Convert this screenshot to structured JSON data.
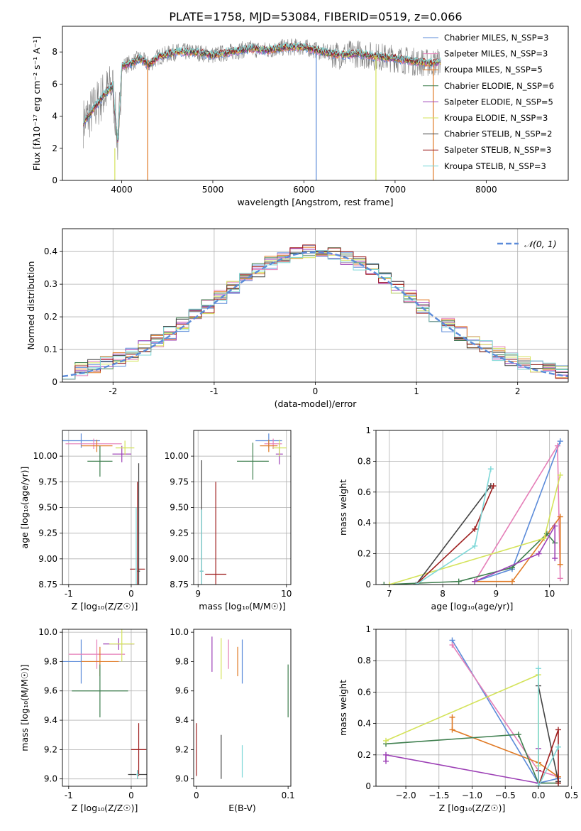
{
  "figure": {
    "title": "PLATE=1758, MJD=53084, FIBERID=0519, z=0.066"
  },
  "colors": {
    "chabrier_miles": "#5b8bd9",
    "salpeter_miles": "#e57fb8",
    "kroupa_miles": "#e07a25",
    "chabrier_elodie": "#3f7f4f",
    "salpeter_elodie": "#9c3fb5",
    "kroupa_elodie": "#d4e35a",
    "chabrier_stelib": "#444444",
    "salpeter_stelib": "#9e1f1f",
    "kroupa_stelib": "#7fd8d8",
    "data": "#808080",
    "normal": "#5b8bd9"
  },
  "chart_data": [
    {
      "id": "spectrum",
      "type": "line",
      "xlabel": "wavelength [Angstrom, rest frame]",
      "ylabel": "Flux [fλ10⁻¹⁷ erg cm⁻² s⁻¹ A⁻¹]",
      "xlim": [
        3350,
        8900
      ],
      "ylim": [
        0,
        9.6
      ],
      "xticks": [
        4000,
        5000,
        6000,
        7000,
        8000
      ],
      "yticks": [
        0,
        2,
        4,
        6,
        8
      ],
      "grid": false,
      "legend": "top-right",
      "legend_entries": [
        "Chabrier MILES, N_SSP=3",
        "Salpeter MILES, N_SSP=3",
        "Kroupa MILES, N_SSP=5",
        "Chabrier ELODIE, N_SSP=6",
        "Salpeter ELODIE, N_SSP=5",
        "Kroupa ELODIE, N_SSP=3",
        "Chabrier STELIB, N_SSP=2",
        "Salpeter STELIB, N_SSP=3",
        "Kroupa STELIB, N_SSP=3"
      ],
      "series": [
        {
          "x": [
            3580,
            3700,
            3800,
            3900,
            3960,
            4000,
            4100,
            4200,
            4300,
            4400,
            4600,
            4800,
            5000,
            5200,
            5400,
            5600,
            5800,
            6000,
            6200,
            6400,
            6600,
            6800,
            7000,
            7200,
            7400,
            7500
          ],
          "y": [
            3.6,
            4.5,
            5.3,
            5.9,
            2.2,
            7.1,
            7.3,
            7.6,
            7.2,
            7.7,
            8.0,
            8.0,
            7.8,
            8.0,
            8.2,
            8.1,
            8.3,
            8.3,
            8.0,
            7.8,
            7.9,
            7.7,
            7.6,
            7.4,
            7.3,
            7.4
          ]
        }
      ],
      "model_lines": [
        {
          "x": 3925,
          "y_top": 2.0,
          "color": "kroupa_elodie"
        },
        {
          "x": 4285,
          "y_top": 7.5,
          "color": "kroupa_miles"
        },
        {
          "x": 6135,
          "y_top": 8.0,
          "color": "chabrier_miles"
        },
        {
          "x": 6790,
          "y_top": 7.8,
          "color": "kroupa_elodie"
        },
        {
          "x": 7420,
          "y_top": 7.4,
          "color": "kroupa_miles"
        }
      ]
    },
    {
      "id": "residuals",
      "type": "line",
      "xlabel": "(data-model)/error",
      "ylabel": "Normed distribution",
      "xlim": [
        -2.5,
        2.5
      ],
      "ylim": [
        0,
        0.47
      ],
      "xticks": [
        -2,
        -1,
        0,
        1,
        2
      ],
      "yticks": [
        0.0,
        0.1,
        0.2,
        0.3,
        0.4
      ],
      "grid": true,
      "legend": "top-right",
      "legend_label": "𝒩(0, 1)",
      "hist_edges": [
        -2.5,
        -2.375,
        -2.25,
        -2.125,
        -2.0,
        -1.875,
        -1.75,
        -1.625,
        -1.5,
        -1.375,
        -1.25,
        -1.125,
        -1.0,
        -0.875,
        -0.75,
        -0.625,
        -0.5,
        -0.375,
        -0.25,
        -0.125,
        0.0,
        0.125,
        0.25,
        0.375,
        0.5,
        0.625,
        0.75,
        0.875,
        1.0,
        1.125,
        1.25,
        1.375,
        1.5,
        1.625,
        1.75,
        1.875,
        2.0,
        2.125,
        2.25,
        2.375,
        2.5
      ]
    },
    {
      "id": "age_vs_Z",
      "type": "scatter",
      "xlabel": "Z [log₁₀(Z/Z☉)]",
      "ylabel": "age  [log₁₀(age/yr)]",
      "xlim": [
        -1.1,
        0.25
      ],
      "ylim": [
        8.75,
        10.25
      ],
      "xticks": [
        -1,
        0
      ],
      "yticks": [
        8.75,
        9.0,
        9.25,
        9.5,
        9.75,
        10.0
      ],
      "ytick_labels": [
        "8.75",
        "9.00",
        "9.25",
        "9.50",
        "9.75",
        "10.00"
      ],
      "grid": true,
      "points": [
        {
          "x": -0.8,
          "y": 10.15,
          "xerr": 0.3,
          "yerr": 0.07,
          "color": "chabrier_miles"
        },
        {
          "x": -0.6,
          "y": 10.12,
          "xerr": 0.45,
          "yerr": 0.05,
          "color": "salpeter_miles"
        },
        {
          "x": -0.55,
          "y": 10.1,
          "xerr": 0.25,
          "yerr": 0.06,
          "color": "kroupa_miles"
        },
        {
          "x": -0.5,
          "y": 9.95,
          "xerr": 0.2,
          "yerr": 0.15,
          "color": "chabrier_elodie"
        },
        {
          "x": -0.15,
          "y": 10.02,
          "xerr": 0.15,
          "yerr": 0.08,
          "color": "salpeter_elodie"
        },
        {
          "x": -0.1,
          "y": 10.08,
          "xerr": 0.15,
          "yerr": 0.07,
          "color": "kroupa_elodie"
        },
        {
          "x": 0.12,
          "y": 8.88,
          "xerr": 0.02,
          "yerr": 1.05,
          "color": "chabrier_stelib"
        },
        {
          "x": 0.1,
          "y": 8.9,
          "xerr": 0.12,
          "yerr": 0.85,
          "color": "salpeter_stelib"
        },
        {
          "x": 0.08,
          "y": 8.9,
          "xerr": 0.02,
          "yerr": 0.6,
          "color": "kroupa_stelib"
        }
      ]
    },
    {
      "id": "age_vs_mass",
      "type": "scatter",
      "xlabel": "mass [log₁₀(M/M☉)]",
      "ylabel": "",
      "xlim": [
        8.95,
        10.05
      ],
      "ylim": [
        8.75,
        10.25
      ],
      "xticks": [
        9,
        10
      ],
      "yticks": [
        8.75,
        9.0,
        9.25,
        9.5,
        9.75,
        10.0
      ],
      "ytick_labels": [
        "8.75",
        "9.00",
        "9.25",
        "9.50",
        "9.75",
        "10.00"
      ],
      "grid": true,
      "points": [
        {
          "x": 9.8,
          "y": 10.15,
          "xerr": 0.15,
          "yerr": 0.07,
          "color": "chabrier_miles"
        },
        {
          "x": 9.85,
          "y": 10.12,
          "xerr": 0.1,
          "yerr": 0.05,
          "color": "salpeter_miles"
        },
        {
          "x": 9.8,
          "y": 10.1,
          "xerr": 0.1,
          "yerr": 0.06,
          "color": "kroupa_miles"
        },
        {
          "x": 9.62,
          "y": 9.95,
          "xerr": 0.18,
          "yerr": 0.18,
          "color": "chabrier_elodie"
        },
        {
          "x": 9.92,
          "y": 10.02,
          "xerr": 0.04,
          "yerr": 0.1,
          "color": "salpeter_elodie"
        },
        {
          "x": 9.92,
          "y": 10.08,
          "xerr": 0.08,
          "yerr": 0.08,
          "color": "kroupa_elodie"
        },
        {
          "x": 9.04,
          "y": 8.88,
          "xerr": 0.02,
          "yerr": 1.08,
          "color": "chabrier_stelib"
        },
        {
          "x": 9.2,
          "y": 8.85,
          "xerr": 0.12,
          "yerr": 0.9,
          "color": "salpeter_stelib"
        },
        {
          "x": 9.04,
          "y": 8.88,
          "xerr": 0.02,
          "yerr": 0.6,
          "color": "kroupa_stelib"
        }
      ]
    },
    {
      "id": "weight_vs_age",
      "type": "line",
      "xlabel": "age  [log₁₀(age/yr)]",
      "ylabel": "mass weight",
      "xlim": [
        6.75,
        10.35
      ],
      "ylim": [
        0,
        1.0
      ],
      "xticks": [
        7,
        8,
        9,
        10
      ],
      "yticks": [
        0.0,
        0.2,
        0.4,
        0.6,
        0.8,
        1.0
      ],
      "grid": true,
      "series": [
        {
          "color": "chabrier_miles",
          "x": [
            8.6,
            9.3,
            10.2
          ],
          "y": [
            0.02,
            0.1,
            0.93
          ]
        },
        {
          "color": "salpeter_miles",
          "x": [
            8.6,
            10.15,
            10.2
          ],
          "y": [
            0.02,
            0.9,
            0.04
          ]
        },
        {
          "color": "kroupa_miles",
          "x": [
            8.6,
            9.3,
            10.2,
            10.2
          ],
          "y": [
            0.02,
            0.02,
            0.44,
            0.13
          ]
        },
        {
          "color": "chabrier_elodie",
          "x": [
            6.9,
            8.3,
            9.3,
            9.95,
            10.1
          ],
          "y": [
            0.0,
            0.02,
            0.11,
            0.33,
            0.27
          ]
        },
        {
          "color": "salpeter_elodie",
          "x": [
            8.6,
            9.8,
            10.1,
            10.1
          ],
          "y": [
            0.02,
            0.2,
            0.38,
            0.17
          ]
        },
        {
          "color": "kroupa_elodie",
          "x": [
            7.0,
            9.9,
            10.2
          ],
          "y": [
            0.0,
            0.3,
            0.71
          ]
        },
        {
          "color": "chabrier_stelib",
          "x": [
            7.5,
            8.9
          ],
          "y": [
            0.0,
            0.64
          ]
        },
        {
          "color": "salpeter_stelib",
          "x": [
            7.5,
            8.6,
            8.95
          ],
          "y": [
            0.0,
            0.36,
            0.64
          ]
        },
        {
          "color": "kroupa_stelib",
          "x": [
            7.5,
            8.6,
            8.9
          ],
          "y": [
            0.0,
            0.25,
            0.75
          ]
        }
      ]
    },
    {
      "id": "mass_vs_Z",
      "type": "scatter",
      "xlabel": "Z [log₁₀(Z/Z☉)]",
      "ylabel": "mass [log₁₀(M/M☉)]",
      "xlim": [
        -1.1,
        0.25
      ],
      "ylim": [
        8.95,
        10.02
      ],
      "xticks": [
        -1,
        0
      ],
      "yticks": [
        9.0,
        9.2,
        9.4,
        9.6,
        9.8,
        10.0
      ],
      "ytick_labels": [
        "9.0",
        "9.2",
        "9.4",
        "9.6",
        "9.8",
        "10.0"
      ],
      "grid": true,
      "points": [
        {
          "x": -0.8,
          "y": 9.8,
          "xerr": 0.3,
          "yerr": 0.15,
          "color": "chabrier_miles"
        },
        {
          "x": -0.55,
          "y": 9.85,
          "xerr": 0.45,
          "yerr": 0.1,
          "color": "salpeter_miles"
        },
        {
          "x": -0.5,
          "y": 9.8,
          "xerr": 0.3,
          "yerr": 0.1,
          "color": "kroupa_miles"
        },
        {
          "x": -0.5,
          "y": 9.6,
          "xerr": 0.45,
          "yerr": 0.18,
          "color": "chabrier_elodie"
        },
        {
          "x": -0.2,
          "y": 9.92,
          "xerr": 0.25,
          "yerr": 0.04,
          "color": "salpeter_elodie"
        },
        {
          "x": -0.15,
          "y": 9.92,
          "xerr": 0.2,
          "yerr": 0.12,
          "color": "kroupa_elodie"
        },
        {
          "x": 0.1,
          "y": 9.03,
          "xerr": 0.15,
          "yerr": 0.03,
          "color": "chabrier_stelib"
        },
        {
          "x": 0.12,
          "y": 9.2,
          "xerr": 0.12,
          "yerr": 0.18,
          "color": "salpeter_stelib"
        },
        {
          "x": 0.1,
          "y": 9.03,
          "xerr": 0.02,
          "yerr": 0.03,
          "color": "kroupa_stelib"
        }
      ]
    },
    {
      "id": "mass_vs_ebv",
      "type": "scatter",
      "xlabel": "E(B-V)",
      "ylabel": "",
      "xlim": [
        -0.003,
        0.103
      ],
      "ylim": [
        8.95,
        10.02
      ],
      "xticks": [
        0.0,
        0.1
      ],
      "yticks": [
        9.0,
        9.2,
        9.4,
        9.6,
        9.8,
        10.0
      ],
      "ytick_labels": [
        "9.0",
        "9.2",
        "9.4",
        "9.6",
        "9.8",
        "10.0"
      ],
      "grid": false,
      "points": [
        {
          "x": 0.05,
          "y": 9.8,
          "xerr": 0,
          "yerr": 0.15,
          "color": "chabrier_miles"
        },
        {
          "x": 0.035,
          "y": 9.85,
          "xerr": 0,
          "yerr": 0.1,
          "color": "salpeter_miles"
        },
        {
          "x": 0.045,
          "y": 9.8,
          "xerr": 0,
          "yerr": 0.1,
          "color": "kroupa_miles"
        },
        {
          "x": 0.1,
          "y": 9.6,
          "xerr": 0,
          "yerr": 0.18,
          "color": "chabrier_elodie"
        },
        {
          "x": 0.017,
          "y": 9.85,
          "xerr": 0,
          "yerr": 0.12,
          "color": "salpeter_elodie"
        },
        {
          "x": 0.027,
          "y": 9.82,
          "xerr": 0,
          "yerr": 0.14,
          "color": "kroupa_elodie"
        },
        {
          "x": 0.027,
          "y": 9.15,
          "xerr": 0,
          "yerr": 0.15,
          "color": "chabrier_stelib"
        },
        {
          "x": 0.0,
          "y": 9.2,
          "xerr": 0,
          "yerr": 0.18,
          "color": "salpeter_stelib"
        },
        {
          "x": 0.05,
          "y": 9.12,
          "xerr": 0,
          "yerr": 0.11,
          "color": "kroupa_stelib"
        }
      ]
    },
    {
      "id": "weight_vs_Z",
      "type": "line",
      "xlabel": "Z [log₁₀(Z/Z☉)]",
      "ylabel": "mass weight",
      "xlim": [
        -2.45,
        0.45
      ],
      "ylim": [
        0,
        1.0
      ],
      "xticks": [
        -2.0,
        -1.5,
        -1.0,
        -0.5,
        0.0,
        0.5
      ],
      "xtick_labels": [
        "−2.0",
        "−1.5",
        "−1.0",
        "−0.5",
        "0.0",
        "0.5"
      ],
      "yticks": [
        0.0,
        0.2,
        0.4,
        0.6,
        0.8,
        1.0
      ],
      "grid": true,
      "series": [
        {
          "color": "chabrier_miles",
          "x": [
            -1.3,
            0.0,
            0.3
          ],
          "y": [
            0.93,
            0.02,
            0.05
          ]
        },
        {
          "color": "salpeter_miles",
          "x": [
            -1.3,
            0.0,
            0.3
          ],
          "y": [
            0.9,
            0.1,
            0.06
          ]
        },
        {
          "color": "kroupa_miles",
          "x": [
            -1.3,
            -1.3,
            0.0,
            0.3
          ],
          "y": [
            0.44,
            0.36,
            0.15,
            0.06
          ]
        },
        {
          "color": "chabrier_elodie",
          "x": [
            -2.3,
            -0.3,
            0.0,
            0.3
          ],
          "y": [
            0.27,
            0.33,
            0.02,
            0.02
          ]
        },
        {
          "color": "salpeter_elodie",
          "x": [
            -2.3,
            -2.3,
            0.0,
            0.0
          ],
          "y": [
            0.16,
            0.2,
            0.02,
            0.24
          ]
        },
        {
          "color": "kroupa_elodie",
          "x": [
            -2.3,
            0.0,
            0.0
          ],
          "y": [
            0.29,
            0.71,
            0.13
          ]
        },
        {
          "color": "chabrier_stelib",
          "x": [
            0.0,
            0.3
          ],
          "y": [
            0.64,
            0.03
          ]
        },
        {
          "color": "salpeter_stelib",
          "x": [
            0.0,
            0.0,
            0.3,
            0.3
          ],
          "y": [
            0.1,
            0.0,
            0.36,
            0.02
          ]
        },
        {
          "color": "kroupa_stelib",
          "x": [
            0.0,
            0.0,
            0.3
          ],
          "y": [
            0.75,
            0.0,
            0.25
          ]
        }
      ]
    }
  ]
}
